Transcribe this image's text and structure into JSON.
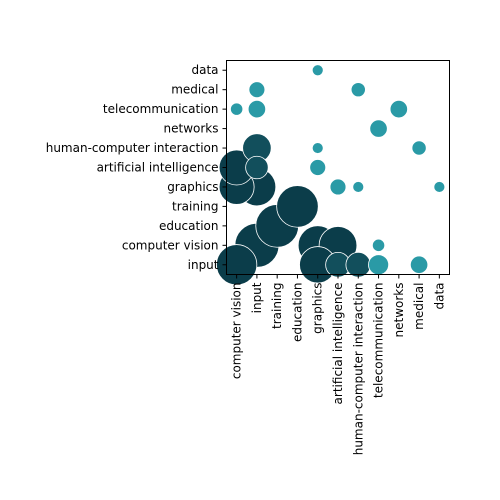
{
  "chart_data": {
    "type": "scatter",
    "title": "",
    "xlabel": "",
    "ylabel": "",
    "x_categories": [
      "computer vision",
      "input",
      "training",
      "education",
      "graphics",
      "artificial intelligence",
      "human-computer interaction",
      "telecommunication",
      "networks",
      "medical",
      "data"
    ],
    "y_categories": [
      "input",
      "computer vision",
      "education",
      "training",
      "graphics",
      "artificial intelligence",
      "human-computer interaction",
      "networks",
      "telecommunication",
      "medical",
      "data"
    ],
    "grid": false,
    "legend": "none",
    "colors": {
      "dark": "#0b3d4a",
      "mid": "#124f5c",
      "light": "#2a9aa6",
      "edge": "#ffffff"
    },
    "points": [
      {
        "x": "computer vision",
        "y": "input",
        "size": 16
      },
      {
        "x": "input",
        "y": "computer vision",
        "size": 19
      },
      {
        "x": "input",
        "y": "graphics",
        "size": 14
      },
      {
        "x": "computer vision",
        "y": "graphics",
        "size": 12
      },
      {
        "x": "computer vision",
        "y": "artificial intelligence",
        "size": 12
      },
      {
        "x": "training",
        "y": "education",
        "size": 18
      },
      {
        "x": "education",
        "y": "training",
        "size": 17
      },
      {
        "x": "graphics",
        "y": "computer vision",
        "size": 15
      },
      {
        "x": "graphics",
        "y": "input",
        "size": 13
      },
      {
        "x": "artificial intelligence",
        "y": "computer vision",
        "size": 14
      },
      {
        "x": "artificial intelligence",
        "y": "input",
        "size": 6
      },
      {
        "x": "input",
        "y": "human-computer interaction",
        "size": 8
      },
      {
        "x": "input",
        "y": "artificial intelligence",
        "size": 5
      },
      {
        "x": "human-computer interaction",
        "y": "input",
        "size": 6
      },
      {
        "x": "telecommunication",
        "y": "input",
        "size": 4
      },
      {
        "x": "medical",
        "y": "input",
        "size": 3
      },
      {
        "x": "input",
        "y": "telecommunication",
        "size": 3
      },
      {
        "x": "input",
        "y": "medical",
        "size": 2.5
      },
      {
        "x": "telecommunication",
        "y": "networks",
        "size": 3
      },
      {
        "x": "networks",
        "y": "telecommunication",
        "size": 3
      },
      {
        "x": "graphics",
        "y": "artificial intelligence",
        "size": 2.5
      },
      {
        "x": "artificial intelligence",
        "y": "graphics",
        "size": 2.5
      },
      {
        "x": "computer vision",
        "y": "telecommunication",
        "size": 1.5
      },
      {
        "x": "human-computer interaction",
        "y": "medical",
        "size": 2
      },
      {
        "x": "medical",
        "y": "human-computer interaction",
        "size": 2
      },
      {
        "x": "telecommunication",
        "y": "computer vision",
        "size": 1.5
      },
      {
        "x": "graphics",
        "y": "data",
        "size": 1
      },
      {
        "x": "graphics",
        "y": "human-computer interaction",
        "size": 1
      },
      {
        "x": "human-computer interaction",
        "y": "graphics",
        "size": 1
      },
      {
        "x": "data",
        "y": "graphics",
        "size": 1
      }
    ]
  }
}
